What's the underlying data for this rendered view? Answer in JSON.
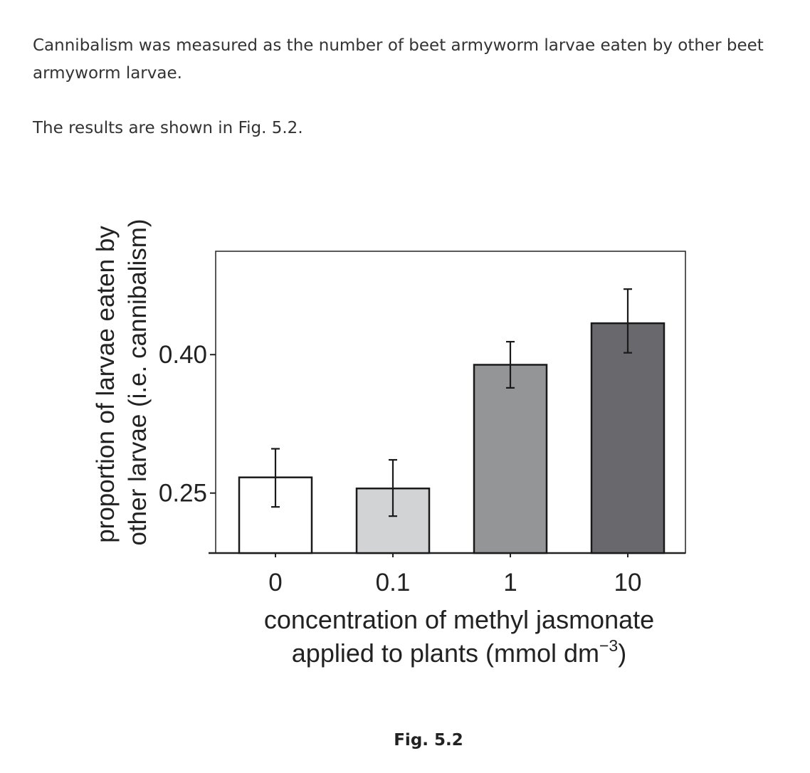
{
  "text": {
    "paragraph1": "Cannibalism was measured as the number of beet armyworm larvae eaten by other beet armyworm larvae.",
    "paragraph2": "The results are shown in Fig. 5.2.",
    "figure_caption": "Fig. 5.2"
  },
  "chart_data": {
    "type": "bar",
    "title": "",
    "categories": [
      "0",
      "0.1",
      "1",
      "10"
    ],
    "values": [
      0.267,
      0.255,
      0.389,
      0.434
    ],
    "error_low": [
      0.235,
      0.225,
      0.364,
      0.402
    ],
    "error_high": [
      0.298,
      0.286,
      0.414,
      0.471
    ],
    "bar_colors": [
      "#ffffff",
      "#d2d3d5",
      "#949597",
      "#69696d"
    ],
    "ylim": [
      0.185,
      0.512
    ],
    "yticks": [
      {
        "value": 0.25,
        "label": "0.25"
      },
      {
        "value": 0.4,
        "label": "0.40"
      }
    ],
    "ylabel_line1": "proportion of larvae eaten by",
    "ylabel_line2": "other larvae (i.e. cannibalism)",
    "xlabel_line1": "concentration of methyl jasmonate",
    "xlabel_line2_prefix": "applied to plants (mmol dm",
    "xlabel_superscript": "−3",
    "xlabel_line2_suffix": ")",
    "grid": false,
    "legend": "none"
  }
}
